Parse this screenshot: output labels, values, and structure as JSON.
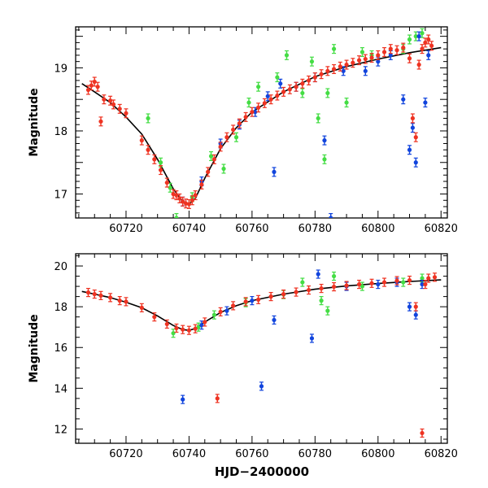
{
  "figure": {
    "xlabel": "HJD−2400000"
  },
  "chart_data": [
    {
      "type": "scatter",
      "title": "",
      "xlabel": "",
      "ylabel": "Magnitude",
      "xlim": [
        60704,
        60822
      ],
      "ylim": [
        19.65,
        16.62
      ],
      "y_inverted": true,
      "grid": false,
      "xticks": [
        60720,
        60740,
        60760,
        60780,
        60800,
        60820
      ],
      "yticks": [
        17,
        18,
        19
      ],
      "colors": {
        "red": "#ee3322",
        "green": "#44dd44",
        "blue": "#1144dd",
        "model": "#000000"
      },
      "model_curve": {
        "x": [
          60706,
          60710,
          60715,
          60720,
          60725,
          60730,
          60735,
          60738,
          60740,
          60742,
          60745,
          60750,
          60755,
          60760,
          60770,
          60780,
          60790,
          60800,
          60810,
          60820
        ],
        "y": [
          18.75,
          18.62,
          18.45,
          18.22,
          17.95,
          17.55,
          17.08,
          16.88,
          16.84,
          16.93,
          17.25,
          17.72,
          18.05,
          18.3,
          18.62,
          18.86,
          19.02,
          19.14,
          19.24,
          19.32
        ]
      },
      "series": [
        {
          "color": "red",
          "x": [
            60708,
            60709,
            60710,
            60711,
            60712,
            60713,
            60715,
            60716,
            60718,
            60720,
            60725,
            60727,
            60729,
            60731,
            60733,
            60735,
            60736,
            60737,
            60738,
            60739,
            60740,
            60741,
            60742,
            60744,
            60746,
            60748,
            60750,
            60752,
            60754,
            60756,
            60758,
            60760,
            60762,
            60764,
            60766,
            60768,
            60770,
            60772,
            60774,
            60776,
            60778,
            60780,
            60782,
            60784,
            60786,
            60788,
            60790,
            60792,
            60794,
            60796,
            60798,
            60800,
            60802,
            60804,
            60806,
            60808,
            60810,
            60811,
            60812,
            60813,
            60814,
            60815,
            60816,
            60817
          ],
          "y": [
            18.65,
            18.72,
            18.78,
            18.7,
            18.15,
            18.5,
            18.48,
            18.42,
            18.35,
            18.28,
            17.85,
            17.7,
            17.55,
            17.38,
            17.18,
            17.0,
            16.98,
            16.93,
            16.88,
            16.85,
            16.84,
            16.9,
            16.98,
            17.15,
            17.35,
            17.55,
            17.75,
            17.9,
            18.02,
            18.12,
            18.22,
            18.3,
            18.37,
            18.44,
            18.5,
            18.56,
            18.62,
            18.66,
            18.7,
            18.75,
            18.8,
            18.85,
            18.9,
            18.95,
            18.98,
            19.02,
            19.05,
            19.08,
            19.12,
            19.14,
            19.16,
            19.2,
            19.25,
            19.3,
            19.28,
            19.32,
            19.15,
            18.2,
            17.9,
            19.05,
            19.3,
            19.4,
            19.45,
            19.35
          ]
        },
        {
          "color": "green",
          "x": [
            60727,
            60731,
            60734,
            60736,
            60741,
            60747,
            60751,
            60755,
            60759,
            60762,
            60768,
            60771,
            60776,
            60779,
            60781,
            60783,
            60784,
            60786,
            60790,
            60795,
            60798,
            60808,
            60810,
            60812,
            60814
          ],
          "y": [
            18.2,
            17.5,
            17.1,
            16.62,
            16.95,
            17.6,
            17.4,
            17.9,
            18.45,
            18.7,
            18.85,
            19.2,
            18.6,
            19.1,
            18.2,
            17.55,
            18.6,
            19.3,
            18.45,
            19.25,
            19.2,
            19.3,
            19.45,
            19.5,
            19.55
          ]
        },
        {
          "color": "blue",
          "x": [
            60738,
            60744,
            60750,
            60756,
            60761,
            60765,
            60767,
            60769,
            60774,
            60780,
            60783,
            60785,
            60789,
            60796,
            60800,
            60804,
            60808,
            60810,
            60811,
            60812,
            60813,
            60815,
            60816
          ],
          "y": [
            16.88,
            17.2,
            17.8,
            18.1,
            18.3,
            18.55,
            17.35,
            18.75,
            18.7,
            18.85,
            17.85,
            16.62,
            18.95,
            18.95,
            19.1,
            19.2,
            18.5,
            17.7,
            18.05,
            17.5,
            19.5,
            18.45,
            19.2
          ]
        }
      ]
    },
    {
      "type": "scatter",
      "title": "",
      "xlabel": "HJD−2400000",
      "ylabel": "Magnitude",
      "xlim": [
        60704,
        60822
      ],
      "ylim": [
        20.6,
        11.3
      ],
      "y_inverted": true,
      "grid": false,
      "xticks": [
        60720,
        60740,
        60760,
        60780,
        60800,
        60820
      ],
      "yticks": [
        12,
        14,
        16,
        18,
        20
      ],
      "colors": {
        "red": "#ee3322",
        "green": "#44dd44",
        "blue": "#1144dd",
        "model": "#000000"
      },
      "model_curve": {
        "x": [
          60706,
          60710,
          60715,
          60720,
          60725,
          60730,
          60735,
          60738,
          60740,
          60742,
          60745,
          60750,
          60755,
          60760,
          60770,
          60780,
          60790,
          60800,
          60810,
          60820
        ],
        "y": [
          18.75,
          18.62,
          18.45,
          18.22,
          17.95,
          17.55,
          17.08,
          16.88,
          16.84,
          16.93,
          17.25,
          17.72,
          18.05,
          18.3,
          18.62,
          18.86,
          19.02,
          19.14,
          19.24,
          19.32
        ]
      },
      "series": [
        {
          "color": "red",
          "x": [
            60708,
            60710,
            60712,
            60715,
            60718,
            60720,
            60725,
            60729,
            60733,
            60736,
            60738,
            60740,
            60742,
            60745,
            60749,
            60750,
            60754,
            60758,
            60762,
            60766,
            60770,
            60774,
            60778,
            60782,
            60786,
            60790,
            60794,
            60798,
            60802,
            60806,
            60810,
            60812,
            60814,
            60815,
            60816,
            60818
          ],
          "y": [
            18.7,
            18.62,
            18.55,
            18.45,
            18.3,
            18.25,
            17.95,
            17.5,
            17.15,
            16.95,
            16.88,
            16.84,
            16.92,
            17.25,
            13.5,
            17.75,
            18.05,
            18.25,
            18.35,
            18.5,
            18.62,
            18.72,
            18.82,
            18.9,
            18.98,
            19.04,
            19.1,
            19.15,
            19.2,
            19.28,
            19.3,
            18.0,
            11.8,
            19.1,
            19.4,
            19.45
          ]
        },
        {
          "color": "green",
          "x": [
            60735,
            60743,
            60748,
            60758,
            60770,
            60776,
            60782,
            60784,
            60786,
            60795,
            60808,
            60814
          ],
          "y": [
            16.7,
            17.0,
            17.6,
            18.2,
            18.6,
            19.2,
            18.3,
            17.8,
            19.5,
            19.0,
            19.2,
            19.4
          ]
        },
        {
          "color": "blue",
          "x": [
            60738,
            60744,
            60752,
            60760,
            60763,
            60767,
            60779,
            60781,
            60790,
            60800,
            60806,
            60810,
            60812,
            60814
          ],
          "y": [
            13.45,
            17.1,
            17.8,
            18.3,
            14.1,
            17.35,
            16.45,
            19.6,
            19.0,
            19.1,
            19.2,
            18.0,
            17.6,
            19.1
          ]
        }
      ]
    }
  ]
}
